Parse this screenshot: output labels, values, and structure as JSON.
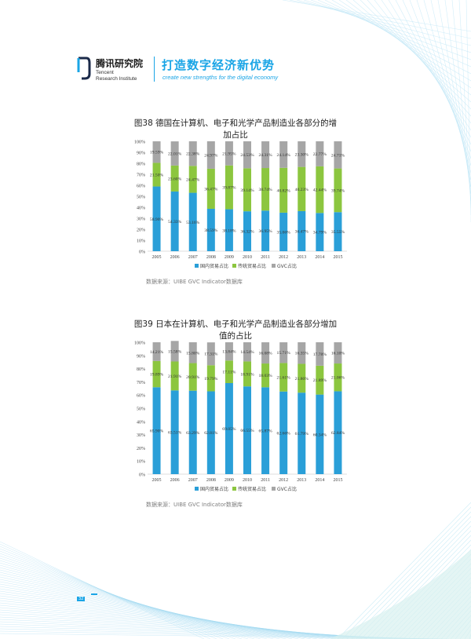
{
  "header": {
    "brand_cn": "腾讯研究院",
    "brand_en_line1": "Tencent",
    "brand_en_line2": "Research Institute",
    "slogan_cn": "打造数字经济新优势",
    "slogan_en": "create new strengths for the digital economy"
  },
  "figures": [
    {
      "title_line1": "图38  德国在计算机、电子和光学产品制造业各部分的增",
      "title_line2": "加占比",
      "source": "数据来源：UIBE GVC Indicator数据库"
    },
    {
      "title_line1": "图39  日本在计算机、电子和光学产品制造业各部分增加",
      "title_line2": "值的占比",
      "source": "数据来源：UIBE GVC Indicator数据库"
    }
  ],
  "page_number": "32",
  "colors": {
    "domestic": "#2a9fd8",
    "traditional": "#8cc63f",
    "gvc": "#a6a6a6",
    "accent": "#1aa5e6"
  },
  "chart_data": [
    {
      "type": "bar",
      "stacked": true,
      "categories": [
        "2005",
        "2006",
        "2007",
        "2008",
        "2009",
        "2010",
        "2011",
        "2012",
        "2013",
        "2014",
        "2015"
      ],
      "ylim": [
        0,
        100
      ],
      "yticks": [
        "0%",
        "10%",
        "20%",
        "30%",
        "40%",
        "50%",
        "60%",
        "70%",
        "80%",
        "90%",
        "100%"
      ],
      "legend_position": "bottom",
      "series": [
        {
          "name": "国内贸易占比",
          "values": [
            58.9,
            54.33,
            53.16,
            38.59,
            38.18,
            36.32,
            36.95,
            35.06,
            36.47,
            34.79,
            35.55
          ],
          "labels": [
            "58.90%",
            "54.33%",
            "53.16%",
            "38.59%",
            "38.18%",
            "36.32%",
            "36.95%",
            "35.06%",
            "36.47%",
            "34.79%",
            "35.55%"
          ]
        },
        {
          "name": "传统贸易占比",
          "values": [
            21.5,
            23.6,
            24.47,
            36.47,
            39.87,
            39.14,
            38.74,
            40.82,
            40.23,
            42.44,
            39.74
          ],
          "labels": [
            "21.50%",
            "23.60%",
            "24.47%",
            "36.47%",
            "39.87%",
            "39.14%",
            "38.74%",
            "40.82%",
            "40.23%",
            "42.44%",
            "39.74%"
          ]
        },
        {
          "name": "GVC占比",
          "values": [
            19.59,
            22.01,
            22.38,
            24.97,
            21.95,
            24.53,
            24.31,
            24.14,
            23.3,
            22.77,
            24.71
          ],
          "labels": [
            "19.59%",
            "22.01%",
            "22.38%",
            "24.97%",
            "21.95%",
            "24.53%",
            "24.31%",
            "24.14%",
            "23.30%",
            "22.77%",
            "24.71%"
          ]
        }
      ]
    },
    {
      "type": "bar",
      "stacked": true,
      "categories": [
        "2005",
        "2006",
        "2007",
        "2008",
        "2009",
        "2010",
        "2011",
        "2012",
        "2013",
        "2014",
        "2015"
      ],
      "ylim": [
        0,
        100
      ],
      "yticks": [
        "0%",
        "10%",
        "20%",
        "30%",
        "40%",
        "50%",
        "60%",
        "70%",
        "80%",
        "90%",
        "100%"
      ],
      "legend_position": "bottom",
      "series": [
        {
          "name": "国内贸易占比",
          "values": [
            65.9,
            63.51,
            63.29,
            62.81,
            69.05,
            66.55,
            65.87,
            62.66,
            61.79,
            60.34,
            62.84
          ],
          "labels": [
            "65.90%",
            "63.51%",
            "63.29%",
            "62.81%",
            "69.05%",
            "66.55%",
            "65.87%",
            "62.66%",
            "61.79%",
            "60.34%",
            "62.84%"
          ]
        },
        {
          "name": "传统贸易占比",
          "values": [
            19.89,
            21.91,
            20.91,
            19.79,
            17.11,
            18.91,
            18.03,
            21.61,
            21.86,
            21.89,
            21.06
          ],
          "labels": [
            "19.89%",
            "21.91%",
            "20.91%",
            "19.79%",
            "17.11%",
            "18.91%",
            "18.03%",
            "21.61%",
            "21.86%",
            "21.89%",
            "21.06%"
          ]
        },
        {
          "name": "GVC占比",
          "values": [
            14.21,
            15.58,
            15.8,
            17.31,
            13.84,
            14.54,
            16.08,
            15.71,
            16.35,
            17.78,
            16.1
          ],
          "labels": [
            "14.21%",
            "15.58%",
            "15.80%",
            "17.31%",
            "13.84%",
            "14.54%",
            "16.08%",
            "15.71%",
            "16.35%",
            "17.78%",
            "16.10%"
          ]
        }
      ]
    }
  ]
}
